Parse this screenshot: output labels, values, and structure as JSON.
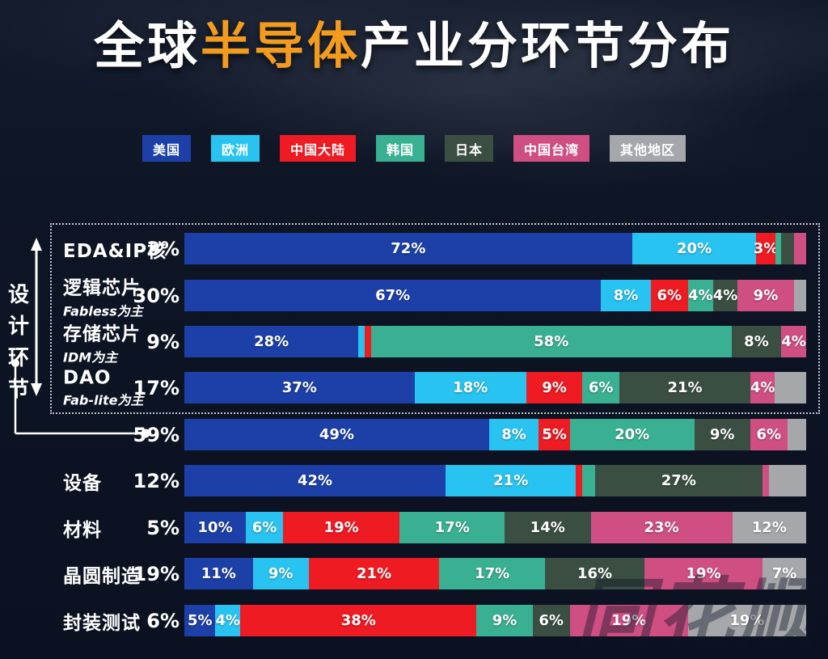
{
  "title": {
    "prefix": "全球",
    "highlight": "半导体",
    "suffix": "产业分环节分布",
    "highlight_color": "#f29b1f"
  },
  "annotations": {
    "design_group_label": "设计环节",
    "design_total_pct": "59%",
    "watermark": "同花顺"
  },
  "chart_data": {
    "type": "stacked_bar_horizontal",
    "unit": "%",
    "legend_position": "top",
    "series": [
      {
        "name": "美国",
        "color": "#1c40a8"
      },
      {
        "name": "欧洲",
        "color": "#29c3f2"
      },
      {
        "name": "中国大陆",
        "color": "#ee1b23"
      },
      {
        "name": "韩国",
        "color": "#3ab092"
      },
      {
        "name": "日本",
        "color": "#3a4f42"
      },
      {
        "name": "中国台湾",
        "color": "#cf4f83"
      },
      {
        "name": "其他地区",
        "color": "#a6a7ab"
      }
    ],
    "rows": [
      {
        "label": "EDA&IP核",
        "sublabel": "",
        "pct": "3%",
        "in_design_group": true,
        "segments": [
          {
            "series": "美国",
            "value": 72,
            "label": "72%"
          },
          {
            "series": "欧洲",
            "value": 20,
            "label": "20%"
          },
          {
            "series": "中国大陆",
            "value": 3,
            "label": "3%"
          },
          {
            "series": "韩国",
            "value": 1,
            "label": ""
          },
          {
            "series": "日本",
            "value": 2,
            "label": ""
          },
          {
            "series": "中国台湾",
            "value": 2,
            "label": ""
          }
        ]
      },
      {
        "label": "逻辑芯片",
        "sublabel": "Fabless为主",
        "pct": "30%",
        "in_design_group": true,
        "segments": [
          {
            "series": "美国",
            "value": 67,
            "label": "67%"
          },
          {
            "series": "欧洲",
            "value": 8,
            "label": "8%"
          },
          {
            "series": "中国大陆",
            "value": 6,
            "label": "6%"
          },
          {
            "series": "韩国",
            "value": 4,
            "label": "4%"
          },
          {
            "series": "日本",
            "value": 4,
            "label": "4%"
          },
          {
            "series": "中国台湾",
            "value": 9,
            "label": "9%"
          },
          {
            "series": "其他地区",
            "value": 2,
            "label": ""
          }
        ]
      },
      {
        "label": "存储芯片",
        "sublabel": "IDM为主",
        "pct": "9%",
        "in_design_group": true,
        "segments": [
          {
            "series": "美国",
            "value": 28,
            "label": "28%"
          },
          {
            "series": "欧洲",
            "value": 1,
            "label": ""
          },
          {
            "series": "中国大陆",
            "value": 1,
            "label": ""
          },
          {
            "series": "韩国",
            "value": 58,
            "label": "58%"
          },
          {
            "series": "日本",
            "value": 8,
            "label": "8%"
          },
          {
            "series": "中国台湾",
            "value": 4,
            "label": "4%"
          }
        ]
      },
      {
        "label": "DAO",
        "sublabel": "Fab-lite为主",
        "pct": "17%",
        "in_design_group": true,
        "segments": [
          {
            "series": "美国",
            "value": 37,
            "label": "37%"
          },
          {
            "series": "欧洲",
            "value": 18,
            "label": "18%"
          },
          {
            "series": "中国大陆",
            "value": 9,
            "label": "9%"
          },
          {
            "series": "韩国",
            "value": 6,
            "label": "6%"
          },
          {
            "series": "日本",
            "value": 21,
            "label": "21%"
          },
          {
            "series": "中国台湾",
            "value": 4,
            "label": "4%"
          },
          {
            "series": "其他地区",
            "value": 5,
            "label": ""
          }
        ]
      },
      {
        "label": "",
        "sublabel": "",
        "pct": "59%",
        "in_design_group": false,
        "is_design_total": true,
        "segments": [
          {
            "series": "美国",
            "value": 49,
            "label": "49%"
          },
          {
            "series": "欧洲",
            "value": 8,
            "label": "8%"
          },
          {
            "series": "中国大陆",
            "value": 5,
            "label": "5%"
          },
          {
            "series": "韩国",
            "value": 20,
            "label": "20%"
          },
          {
            "series": "日本",
            "value": 9,
            "label": "9%"
          },
          {
            "series": "中国台湾",
            "value": 6,
            "label": "6%"
          },
          {
            "series": "其他地区",
            "value": 3,
            "label": ""
          }
        ]
      },
      {
        "label": "设备",
        "sublabel": "",
        "pct": "12%",
        "in_design_group": false,
        "segments": [
          {
            "series": "美国",
            "value": 42,
            "label": "42%"
          },
          {
            "series": "欧洲",
            "value": 21,
            "label": "21%"
          },
          {
            "series": "中国大陆",
            "value": 1,
            "label": ""
          },
          {
            "series": "韩国",
            "value": 2,
            "label": ""
          },
          {
            "series": "日本",
            "value": 27,
            "label": "27%"
          },
          {
            "series": "中国台湾",
            "value": 1,
            "label": ""
          },
          {
            "series": "其他地区",
            "value": 6,
            "label": ""
          }
        ]
      },
      {
        "label": "材料",
        "sublabel": "",
        "pct": "5%",
        "in_design_group": false,
        "segments": [
          {
            "series": "美国",
            "value": 10,
            "label": "10%"
          },
          {
            "series": "欧洲",
            "value": 6,
            "label": "6%"
          },
          {
            "series": "中国大陆",
            "value": 19,
            "label": "19%"
          },
          {
            "series": "韩国",
            "value": 17,
            "label": "17%"
          },
          {
            "series": "日本",
            "value": 14,
            "label": "14%"
          },
          {
            "series": "中国台湾",
            "value": 23,
            "label": "23%"
          },
          {
            "series": "其他地区",
            "value": 12,
            "label": "12%"
          }
        ]
      },
      {
        "label": "晶圆制造",
        "sublabel": "",
        "pct": "19%",
        "in_design_group": false,
        "segments": [
          {
            "series": "美国",
            "value": 11,
            "label": "11%"
          },
          {
            "series": "欧洲",
            "value": 9,
            "label": "9%"
          },
          {
            "series": "中国大陆",
            "value": 21,
            "label": "21%"
          },
          {
            "series": "韩国",
            "value": 17,
            "label": "17%"
          },
          {
            "series": "日本",
            "value": 16,
            "label": "16%"
          },
          {
            "series": "中国台湾",
            "value": 19,
            "label": "19%"
          },
          {
            "series": "其他地区",
            "value": 7,
            "label": "7%"
          }
        ]
      },
      {
        "label": "封装测试",
        "sublabel": "",
        "pct": "6%",
        "in_design_group": false,
        "segments": [
          {
            "series": "美国",
            "value": 5,
            "label": "5%"
          },
          {
            "series": "欧洲",
            "value": 4,
            "label": "4%"
          },
          {
            "series": "中国大陆",
            "value": 38,
            "label": "38%"
          },
          {
            "series": "韩国",
            "value": 9,
            "label": "9%"
          },
          {
            "series": "日本",
            "value": 6,
            "label": "6%"
          },
          {
            "series": "中国台湾",
            "value": 19,
            "label": "19%"
          },
          {
            "series": "其他地区",
            "value": 19,
            "label": "19%"
          }
        ]
      }
    ]
  }
}
